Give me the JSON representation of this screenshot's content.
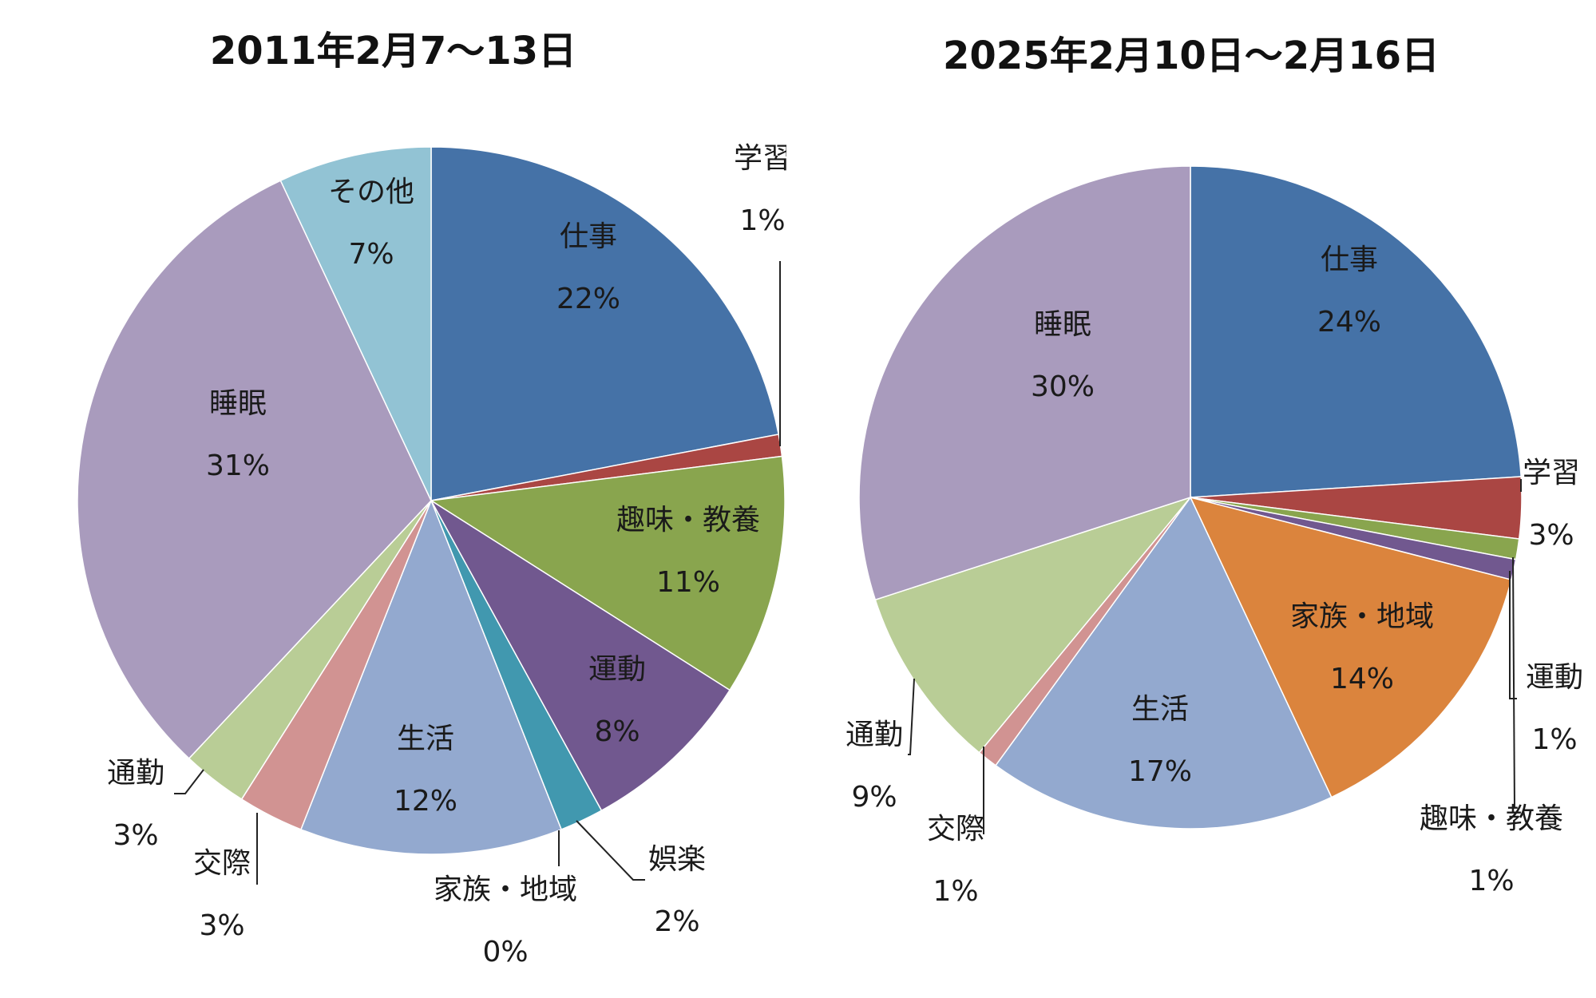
{
  "chart_data": [
    {
      "type": "pie",
      "title": "2011年2月7～13日",
      "slices": [
        {
          "label": "仕事",
          "value": 22,
          "text": "22%",
          "color": "#4572A7"
        },
        {
          "label": "学習",
          "value": 1,
          "text": "1%",
          "color": "#AA4643"
        },
        {
          "label": "趣味・教養",
          "value": 11,
          "text": "11%",
          "color": "#89A54E"
        },
        {
          "label": "運動",
          "value": 8,
          "text": "8%",
          "color": "#71588F"
        },
        {
          "label": "娯楽",
          "value": 2,
          "text": "2%",
          "color": "#4198AF"
        },
        {
          "label": "家族・地域",
          "value": 0,
          "text": "0%",
          "color": "#DB843D"
        },
        {
          "label": "生活",
          "value": 12,
          "text": "12%",
          "color": "#93A9CF"
        },
        {
          "label": "交際",
          "value": 3,
          "text": "3%",
          "color": "#D19392"
        },
        {
          "label": "通勤",
          "value": 3,
          "text": "3%",
          "color": "#B9CD96"
        },
        {
          "label": "睡眠",
          "value": 31,
          "text": "31%",
          "color": "#A99BBD"
        },
        {
          "label": "その他",
          "value": 7,
          "text": "7%",
          "color": "#92C3D4"
        }
      ]
    },
    {
      "type": "pie",
      "title": "2025年2月10日～2月16日",
      "slices": [
        {
          "label": "仕事",
          "value": 24,
          "text": "24%",
          "color": "#4572A7"
        },
        {
          "label": "学習",
          "value": 3,
          "text": "3%",
          "color": "#AA4643"
        },
        {
          "label": "趣味・教養",
          "value": 1,
          "text": "1%",
          "color": "#89A54E"
        },
        {
          "label": "運動",
          "value": 1,
          "text": "1%",
          "color": "#71588F"
        },
        {
          "label": "家族・地域",
          "value": 14,
          "text": "14%",
          "color": "#DB843D"
        },
        {
          "label": "生活",
          "value": 17,
          "text": "17%",
          "color": "#93A9CF"
        },
        {
          "label": "交際",
          "value": 1,
          "text": "1%",
          "color": "#D19392"
        },
        {
          "label": "通勤",
          "value": 9,
          "text": "9%",
          "color": "#B9CD96"
        },
        {
          "label": "睡眠",
          "value": 30,
          "text": "30%",
          "color": "#A99BBD"
        }
      ]
    }
  ]
}
